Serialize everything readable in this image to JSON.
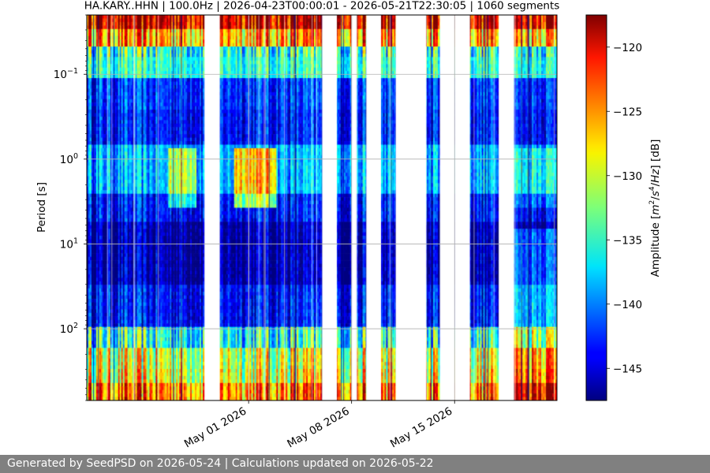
{
  "chart_data": {
    "type": "heatmap",
    "title": "HA.KARY..HHN | 100.0Hz | 2026-04-23T00:00:01 - 2026-05-21T22:30:05 | 1060 segments",
    "ylabel": "Period [s]",
    "colorbar_label": "Amplitude [m²/s⁴/Hz] [dB]",
    "colorbar_label_parts": {
      "pre": "Amplitude [",
      "m": "m",
      "sup1": "2",
      "slash": "/",
      "s": "s",
      "sup2": "4",
      "slash2": "/",
      "hz": "Hz",
      "post": "] [dB]"
    },
    "y_scale": "log",
    "y_range_s": [
      0.02,
      700
    ],
    "y_ticks": [
      {
        "value": 0.1,
        "base": "10",
        "exp": "−1"
      },
      {
        "value": 1,
        "base": "10",
        "exp": "0"
      },
      {
        "value": 10,
        "base": "10",
        "exp": "1"
      },
      {
        "value": 100,
        "base": "10",
        "exp": "2"
      }
    ],
    "x_range": [
      "2026-04-20",
      "2026-05-21T23:00"
    ],
    "x_ticks": [
      {
        "date": "2026-05-01",
        "label": "May 01 2026"
      },
      {
        "date": "2026-05-08",
        "label": "May 08 2026"
      },
      {
        "date": "2026-05-15",
        "label": "May 15 2026"
      }
    ],
    "data_gaps": [
      [
        "2026-04-28T00:00",
        "2026-04-29T01:00"
      ],
      [
        "2026-05-06T00:00",
        "2026-05-07T00:00"
      ],
      [
        "2026-05-08T00:00",
        "2026-05-08T08:00"
      ],
      [
        "2026-05-09T00:00",
        "2026-05-10T00:00"
      ],
      [
        "2026-05-11T00:00",
        "2026-05-13T02:00"
      ],
      [
        "2026-05-14T00:00",
        "2026-05-15T00:00"
      ],
      [
        "2026-05-15T00:00",
        "2026-05-16T01:00"
      ],
      [
        "2026-05-18T00:00",
        "2026-05-19T01:00"
      ]
    ],
    "colorbar": {
      "colormap": "jet",
      "range_db": [
        -147.5,
        -117.5
      ],
      "ticks": [
        -120,
        -125,
        -130,
        -135,
        -140,
        -145
      ],
      "tick_labels": [
        "−120",
        "−125",
        "−130",
        "−135",
        "−140",
        "−145"
      ]
    },
    "grid": true
  },
  "footer": {
    "text": "Generated by SeedPSD on 2026-05-24 | Calculations updated on 2026-05-22"
  }
}
